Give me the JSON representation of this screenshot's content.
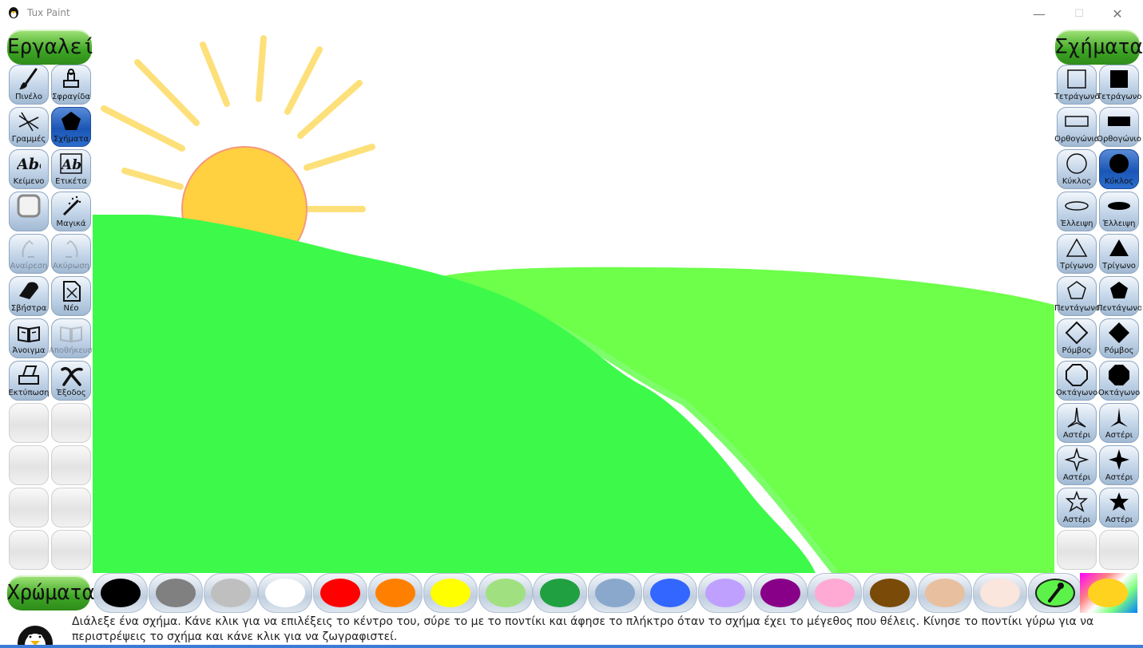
{
  "window": {
    "title": "Tux Paint",
    "minimize": "—",
    "maximize": "☐",
    "close": "✕"
  },
  "tools_header": "Εργαλεία",
  "shapes_header": "Σχήματα",
  "colors_header": "Χρώματα",
  "tools": [
    {
      "label": "Πινέλο",
      "icon": "paintbrush-icon"
    },
    {
      "label": "Σφραγίδα",
      "icon": "stamp-icon"
    },
    {
      "label": "Γραμμές",
      "icon": "lines-icon"
    },
    {
      "label": "Σχήματα",
      "icon": "shapes-icon",
      "selected": true
    },
    {
      "label": "Κείμενο",
      "icon": "text-icon"
    },
    {
      "label": "Ετικέτα",
      "icon": "label-icon"
    },
    {
      "label": "",
      "icon": "fill-icon"
    },
    {
      "label": "Μαγικά",
      "icon": "magic-wand-icon"
    },
    {
      "label": "Αναίρεση",
      "icon": "undo-icon",
      "disabled": true
    },
    {
      "label": "Ακύρωση",
      "icon": "redo-icon",
      "disabled": true
    },
    {
      "label": "Σβήστρα",
      "icon": "eraser-icon"
    },
    {
      "label": "Νέο",
      "icon": "new-icon"
    },
    {
      "label": "Άνοιγμα",
      "icon": "open-icon"
    },
    {
      "label": "Αποθήκευση",
      "icon": "save-icon",
      "disabled": true
    },
    {
      "label": "Εκτύπωση",
      "icon": "print-icon"
    },
    {
      "label": "Έξοδος",
      "icon": "quit-icon"
    }
  ],
  "shapes": [
    {
      "label": "Τετράγωνο",
      "icon": "square-outline-icon"
    },
    {
      "label": "Τετράγωνο",
      "icon": "square-filled-icon"
    },
    {
      "label": "Ορθογώνιο",
      "icon": "rectangle-outline-icon"
    },
    {
      "label": "Ορθογώνιο",
      "icon": "rectangle-filled-icon"
    },
    {
      "label": "Κύκλος",
      "icon": "circle-outline-icon"
    },
    {
      "label": "Κύκλος",
      "icon": "circle-filled-icon",
      "selected": true
    },
    {
      "label": "Έλλειψη",
      "icon": "ellipse-outline-icon"
    },
    {
      "label": "Έλλειψη",
      "icon": "ellipse-filled-icon"
    },
    {
      "label": "Τρίγωνο",
      "icon": "triangle-outline-icon"
    },
    {
      "label": "Τρίγωνο",
      "icon": "triangle-filled-icon"
    },
    {
      "label": "Πεντάγωνο",
      "icon": "pentagon-outline-icon"
    },
    {
      "label": "Πεντάγωνο",
      "icon": "pentagon-filled-icon"
    },
    {
      "label": "Ρόμβος",
      "icon": "rhombus-outline-icon"
    },
    {
      "label": "Ρόμβος",
      "icon": "rhombus-filled-icon"
    },
    {
      "label": "Οκτάγωνο",
      "icon": "octagon-outline-icon"
    },
    {
      "label": "Οκτάγωνο",
      "icon": "octagon-filled-icon"
    },
    {
      "label": "Αστέρι",
      "icon": "star3-outline-icon"
    },
    {
      "label": "Αστέρι",
      "icon": "star3-filled-icon"
    },
    {
      "label": "Αστέρι",
      "icon": "star4-outline-icon"
    },
    {
      "label": "Αστέρι",
      "icon": "star4-filled-icon"
    },
    {
      "label": "Αστέρι",
      "icon": "star5-outline-icon"
    },
    {
      "label": "Αστέρι",
      "icon": "star5-filled-icon"
    }
  ],
  "colors": [
    "#000000",
    "#808080",
    "#bfbfbf",
    "#ffffff",
    "#ff0000",
    "#ff8000",
    "#ffff00",
    "#a0e080",
    "#20a040",
    "#8aa8cc",
    "#3366ff",
    "#c0a0ff",
    "#880088",
    "#ffaad4",
    "#7a4a08",
    "#e8c0a0",
    "#fae6dc"
  ],
  "picker_icon": "color-picker-icon",
  "custom_color_icon": "color-palette-icon",
  "selected_color": "#ffd21f",
  "status_message": "Διάλεξε ένα σχήμα. Κάνε κλικ για να επιλέξεις το κέντρο του, σύρε το με το ποντίκι και άφησε το πλήκτρο όταν το σχήμα έχει το μέγεθος που θέλεις. Κίνησε το ποντίκι γύρω για να περιστρέψεις το σχήμα και κάνε κλικ για να ζωγραφιστεί."
}
